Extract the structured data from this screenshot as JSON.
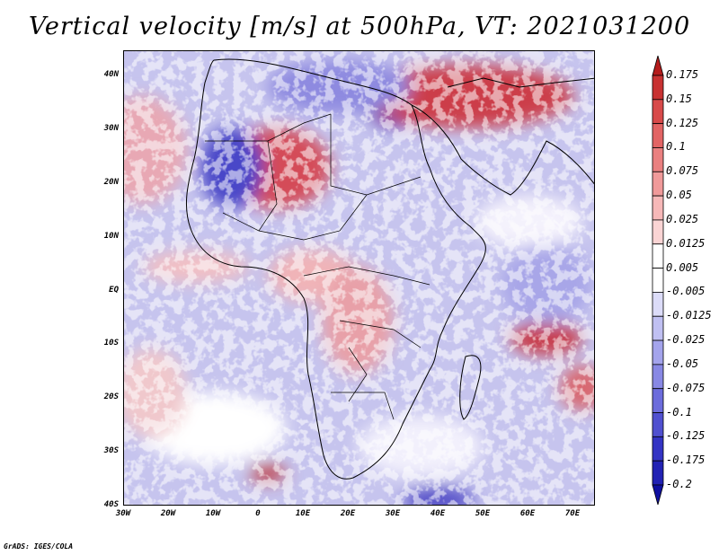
{
  "title": "Vertical velocity [m/s] at 500hPa, VT: 2021031200",
  "credit": "GrADS: IGES/COLA",
  "lat_labels": [
    "40N",
    "30N",
    "20N",
    "10N",
    "EQ",
    "10S",
    "20S",
    "30S",
    "40S"
  ],
  "lon_labels": [
    "30W",
    "20W",
    "10W",
    "0",
    "10E",
    "20E",
    "30E",
    "40E",
    "50E",
    "60E",
    "70E"
  ],
  "colorbar": {
    "labels": [
      "0.175",
      "0.15",
      "0.125",
      "0.1",
      "0.075",
      "0.05",
      "0.025",
      "0.0125",
      "0.005",
      "-0.005",
      "-0.0125",
      "-0.025",
      "-0.05",
      "-0.075",
      "-0.1",
      "-0.125",
      "-0.175",
      "-0.2"
    ],
    "colors": [
      "#b41c1c",
      "#c83232",
      "#d84a4a",
      "#e26464",
      "#ea8080",
      "#f09a9a",
      "#f6b8b8",
      "#fad4d4",
      "#ffffff",
      "#ffffff",
      "#dcdcf8",
      "#c0c0f2",
      "#a4a4ec",
      "#8888e4",
      "#6c6cdc",
      "#5050d0",
      "#3434c4",
      "#2222b4",
      "#1010a0"
    ]
  }
}
